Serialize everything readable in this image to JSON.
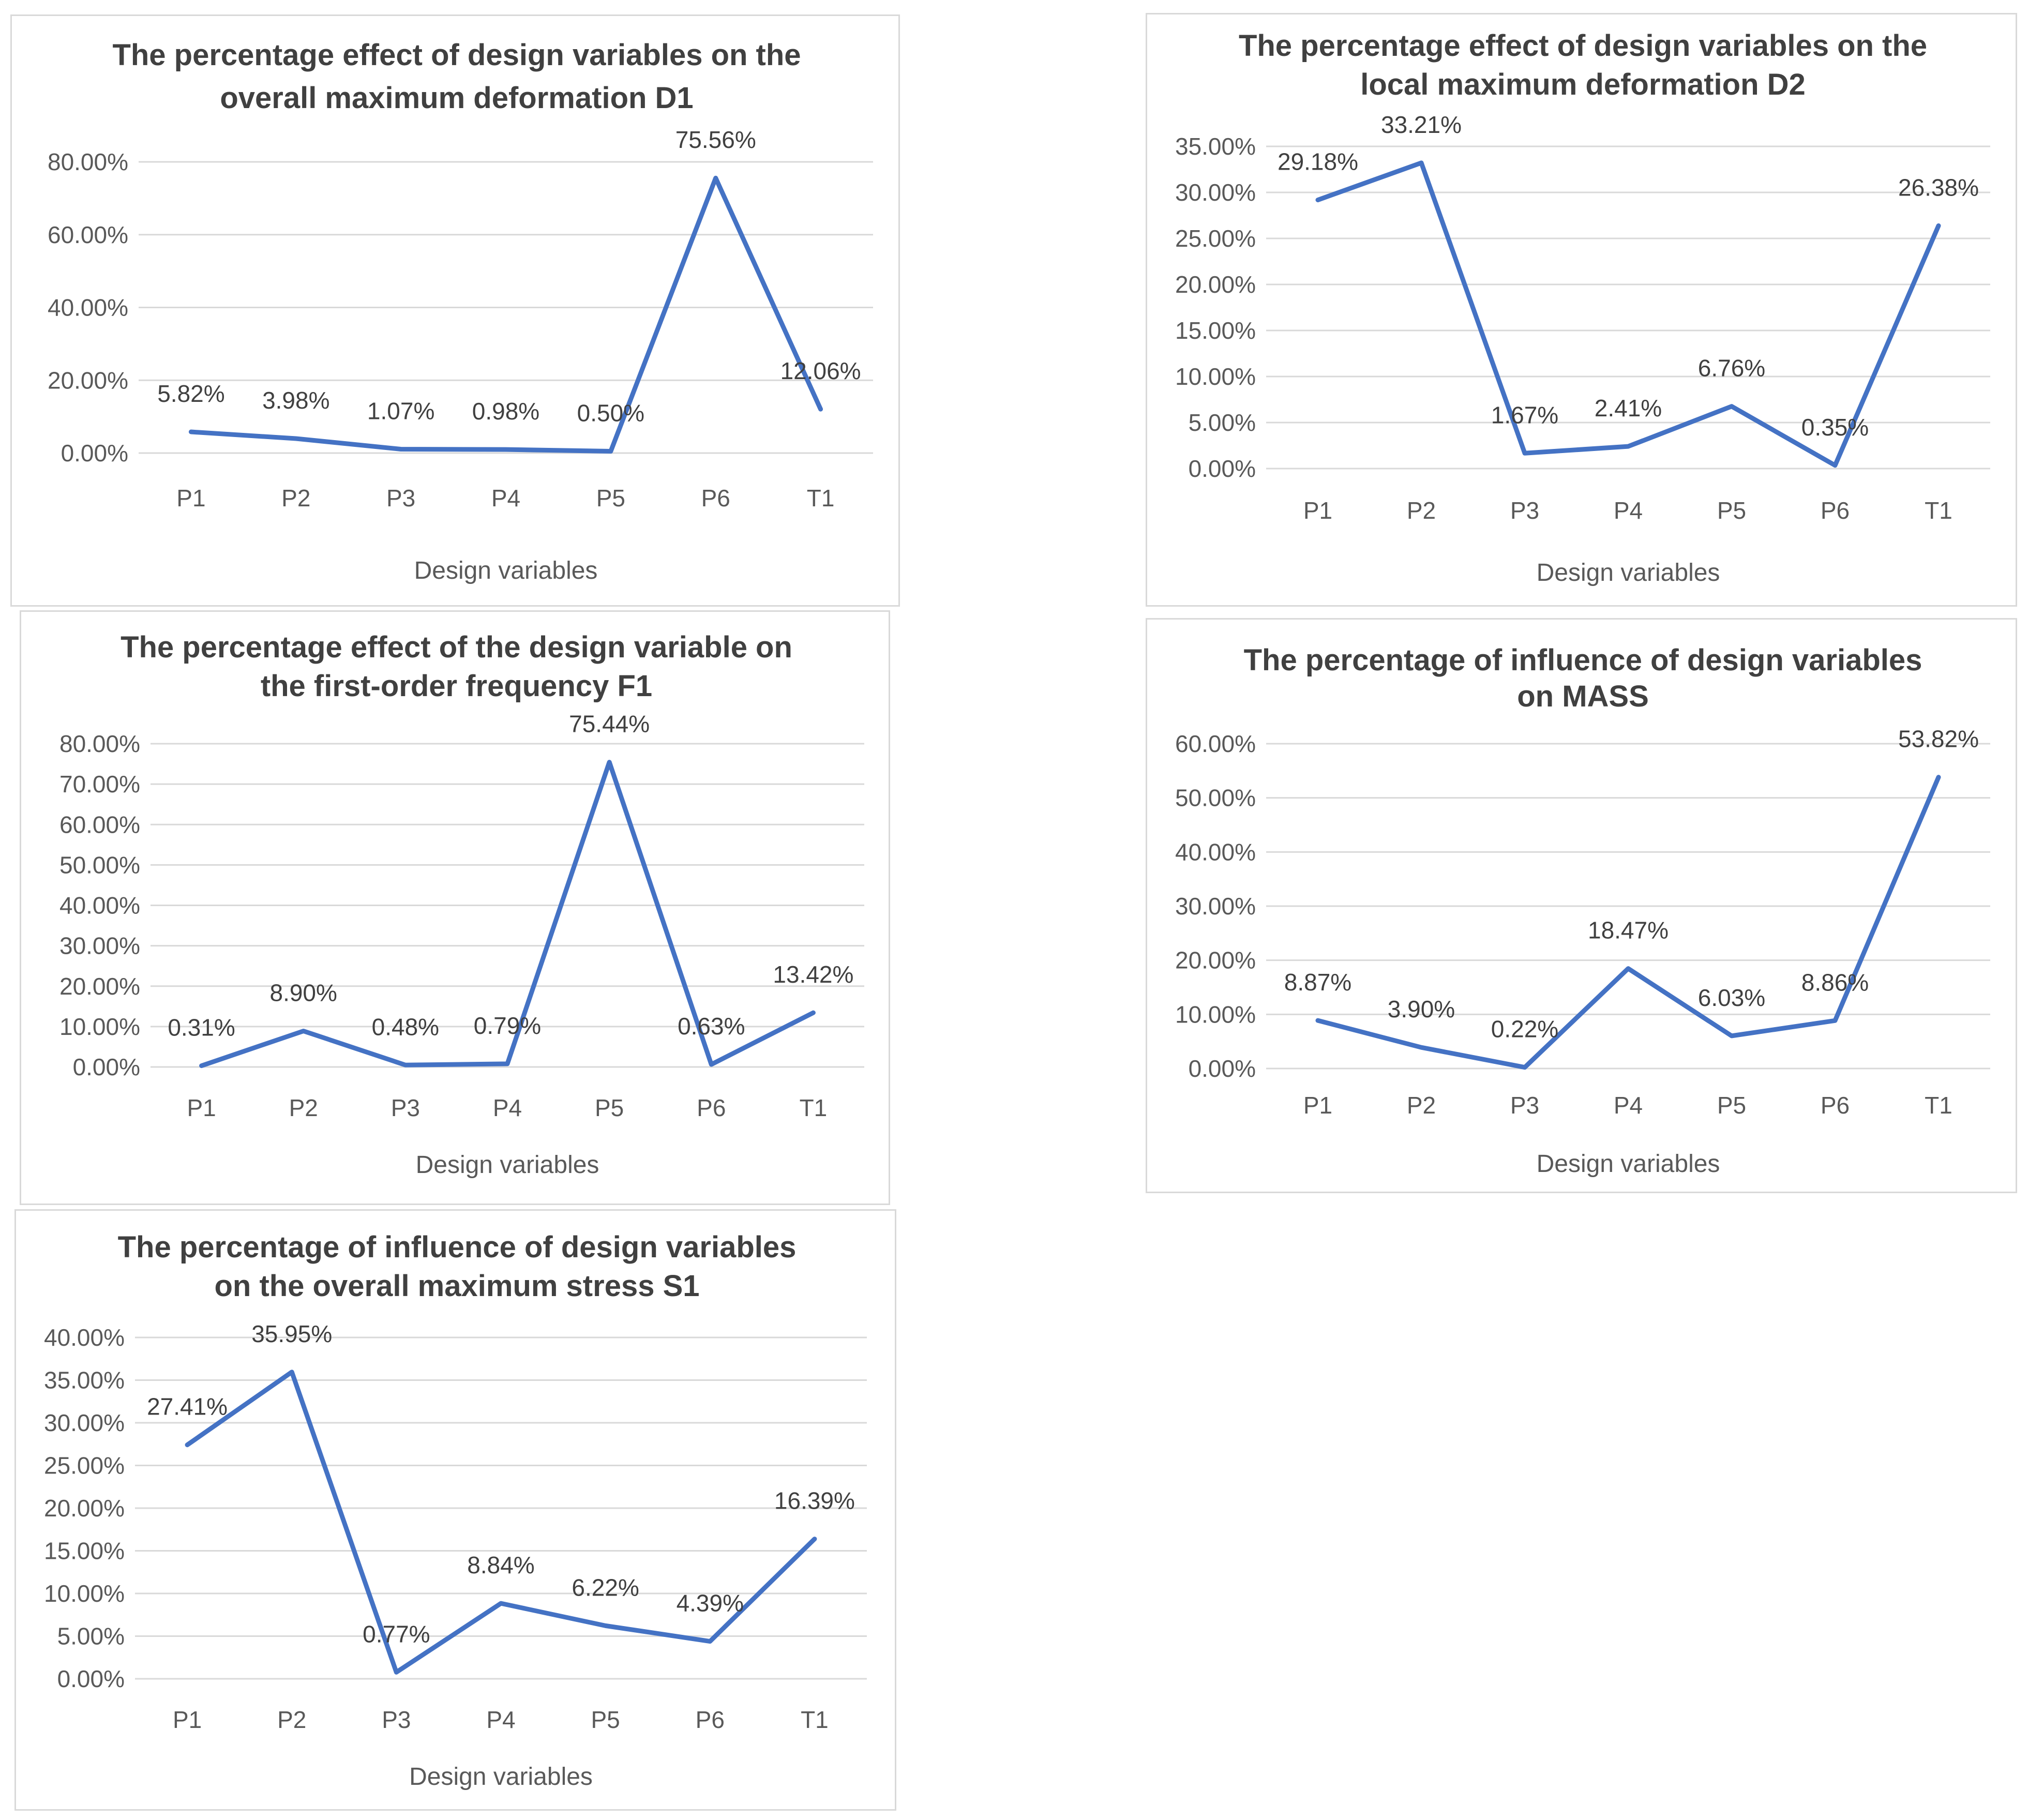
{
  "chart_data": [
    {
      "type": "line",
      "title": [
        "The percentage effect of design variables on the",
        "overall maximum deformation D1"
      ],
      "xlabel": "Design variables",
      "ylabel": "",
      "categories": [
        "P1",
        "P2",
        "P3",
        "P4",
        "P5",
        "P6",
        "T1"
      ],
      "values": [
        5.82,
        3.98,
        1.07,
        0.98,
        0.5,
        75.56,
        12.06
      ],
      "data_labels": [
        "5.82%",
        "3.98%",
        "1.07%",
        "0.98%",
        "0.50%",
        "75.56%",
        "12.06%"
      ],
      "yticks": [
        0,
        20,
        40,
        60,
        80
      ],
      "ytick_labels": [
        "0.00%",
        "20.00%",
        "40.00%",
        "60.00%",
        "80.00%"
      ],
      "ylim": [
        0,
        80
      ],
      "color": "#4472c4"
    },
    {
      "type": "line",
      "title": [
        "The percentage effect of design variables on the",
        "local maximum deformation D2"
      ],
      "xlabel": "Design variables",
      "ylabel": "",
      "categories": [
        "P1",
        "P2",
        "P3",
        "P4",
        "P5",
        "P6",
        "T1"
      ],
      "values": [
        29.18,
        33.21,
        1.67,
        2.41,
        6.76,
        0.35,
        26.38
      ],
      "data_labels": [
        "29.18%",
        "33.21%",
        "1.67%",
        "2.41%",
        "6.76%",
        "0.35%",
        "26.38%"
      ],
      "yticks": [
        0,
        5,
        10,
        15,
        20,
        25,
        30,
        35
      ],
      "ytick_labels": [
        "0.00%",
        "5.00%",
        "10.00%",
        "15.00%",
        "20.00%",
        "25.00%",
        "30.00%",
        "35.00%"
      ],
      "ylim": [
        0,
        35
      ],
      "color": "#4472c4"
    },
    {
      "type": "line",
      "title": [
        "The percentage effect of the design variable on",
        "the first-order frequency F1"
      ],
      "xlabel": "Design variables",
      "ylabel": "",
      "categories": [
        "P1",
        "P2",
        "P3",
        "P4",
        "P5",
        "P6",
        "T1"
      ],
      "values": [
        0.31,
        8.9,
        0.48,
        0.79,
        75.44,
        0.63,
        13.42
      ],
      "data_labels": [
        "0.31%",
        "8.90%",
        "0.48%",
        "0.79%",
        "75.44%",
        "0.63%",
        "13.42%"
      ],
      "yticks": [
        0,
        10,
        20,
        30,
        40,
        50,
        60,
        70,
        80
      ],
      "ytick_labels": [
        "0.00%",
        "10.00%",
        "20.00%",
        "30.00%",
        "40.00%",
        "50.00%",
        "60.00%",
        "70.00%",
        "80.00%"
      ],
      "ylim": [
        0,
        80
      ],
      "color": "#4472c4"
    },
    {
      "type": "line",
      "title": [
        "The percentage of influence of design variables",
        "on MASS"
      ],
      "xlabel": "Design variables",
      "ylabel": "",
      "categories": [
        "P1",
        "P2",
        "P3",
        "P4",
        "P5",
        "P6",
        "T1"
      ],
      "values": [
        8.87,
        3.9,
        0.22,
        18.47,
        6.03,
        8.86,
        53.82
      ],
      "data_labels": [
        "8.87%",
        "3.90%",
        "0.22%",
        "18.47%",
        "6.03%",
        "8.86%",
        "53.82%"
      ],
      "yticks": [
        0,
        10,
        20,
        30,
        40,
        50,
        60
      ],
      "ytick_labels": [
        "0.00%",
        "10.00%",
        "20.00%",
        "30.00%",
        "40.00%",
        "50.00%",
        "60.00%"
      ],
      "ylim": [
        0,
        60
      ],
      "color": "#4472c4"
    },
    {
      "type": "line",
      "title": [
        "The percentage of influence of design variables",
        "on the overall maximum stress S1"
      ],
      "xlabel": "Design variables",
      "ylabel": "",
      "categories": [
        "P1",
        "P2",
        "P3",
        "P4",
        "P5",
        "P6",
        "T1"
      ],
      "values": [
        27.41,
        35.95,
        0.77,
        8.84,
        6.22,
        4.39,
        16.39
      ],
      "data_labels": [
        "27.41%",
        "35.95%",
        "0.77%",
        "8.84%",
        "6.22%",
        "4.39%",
        "16.39%"
      ],
      "yticks": [
        0,
        5,
        10,
        15,
        20,
        25,
        30,
        35,
        40
      ],
      "ytick_labels": [
        "0.00%",
        "5.00%",
        "10.00%",
        "15.00%",
        "20.00%",
        "25.00%",
        "30.00%",
        "35.00%",
        "40.00%"
      ],
      "ylim": [
        0,
        40
      ],
      "color": "#4472c4"
    }
  ]
}
